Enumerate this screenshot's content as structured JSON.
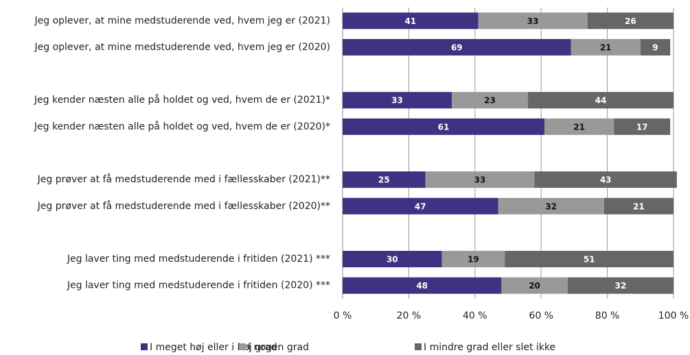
{
  "chart_data": {
    "type": "stacked-bar-horizontal",
    "categories": [
      "Jeg oplever, at mine medstuderende ved, hvem jeg er (2021)",
      "Jeg oplever, at mine medstuderende ved, hvem jeg er (2020)",
      null,
      "Jeg kender næsten alle på holdet og ved, hvem de er (2021)*",
      "Jeg kender næsten alle på holdet og ved, hvem de er (2020)*",
      null,
      "Jeg prøver at få medstuderende med i fællesskaber (2021)**",
      "Jeg prøver at få medstuderende med i fællesskaber (2020)**",
      null,
      "Jeg laver ting med medstuderende i fritiden (2021) ***",
      "Jeg laver ting med medstuderende i fritiden (2020) ***"
    ],
    "series": [
      {
        "name": "I meget høj eller i høj grad",
        "color": "#3f3282",
        "label_color": "#ffffff",
        "values": [
          41,
          69,
          null,
          33,
          61,
          null,
          25,
          47,
          null,
          30,
          48
        ]
      },
      {
        "name": "I nogen grad",
        "color": "#999999",
        "label_color": "#111111",
        "values": [
          33,
          21,
          null,
          23,
          21,
          null,
          33,
          32,
          null,
          19,
          20
        ]
      },
      {
        "name": "I mindre grad eller slet ikke",
        "color": "#666666",
        "label_color": "#ffffff",
        "values": [
          26,
          9,
          null,
          44,
          17,
          null,
          43,
          21,
          null,
          51,
          32
        ]
      }
    ],
    "xlim": [
      0,
      100
    ],
    "xticks": [
      {
        "value": 0,
        "label": "0 %"
      },
      {
        "value": 20,
        "label": "20 %"
      },
      {
        "value": 40,
        "label": "40 %"
      },
      {
        "value": 60,
        "label": "60 %"
      },
      {
        "value": 80,
        "label": "80 %"
      },
      {
        "value": 100,
        "label": "100 %"
      }
    ],
    "grid": true,
    "legend": "bottom"
  }
}
